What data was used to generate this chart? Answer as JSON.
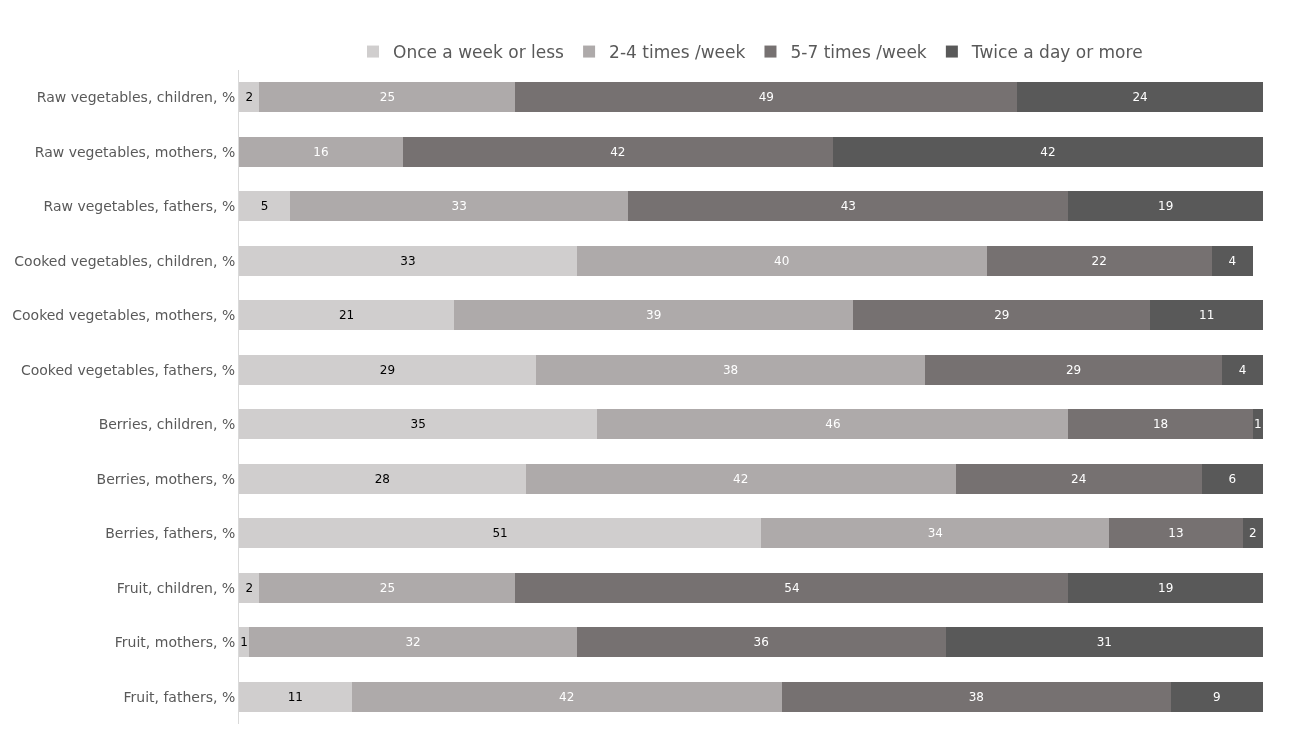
{
  "chart_data": {
    "type": "bar",
    "orientation": "horizontal",
    "stacked": true,
    "data_labels": true,
    "legend": "top",
    "categories": [
      "Raw vegetables, children, %",
      "Raw vegetables, mothers, %",
      "Raw vegetables, fathers, %",
      "Cooked vegetables, children, %",
      "Cooked vegetables, mothers, %",
      "Cooked vegetables, fathers, %",
      "Berries, children, %",
      "Berries, mothers, %",
      "Berries, fathers, %",
      "Fruit, children, %",
      "Fruit, mothers, %",
      "Fruit, fathers, %"
    ],
    "series": [
      {
        "name": "Once a week or less",
        "color": "#d0cece",
        "values": [
          2,
          null,
          5,
          33,
          21,
          29,
          35,
          28,
          51,
          2,
          1,
          11
        ]
      },
      {
        "name": "2-4 times /week",
        "color": "#aeaaaa",
        "values": [
          25,
          16,
          33,
          40,
          39,
          38,
          46,
          42,
          34,
          25,
          32,
          42
        ]
      },
      {
        "name": "5-7 times /week",
        "color": "#767171",
        "values": [
          49,
          42,
          43,
          22,
          29,
          29,
          18,
          24,
          13,
          54,
          36,
          38
        ]
      },
      {
        "name": "Twice a day or more",
        "color": "#595959",
        "values": [
          24,
          42,
          19,
          4,
          11,
          4,
          1,
          6,
          2,
          19,
          31,
          9
        ]
      }
    ]
  }
}
